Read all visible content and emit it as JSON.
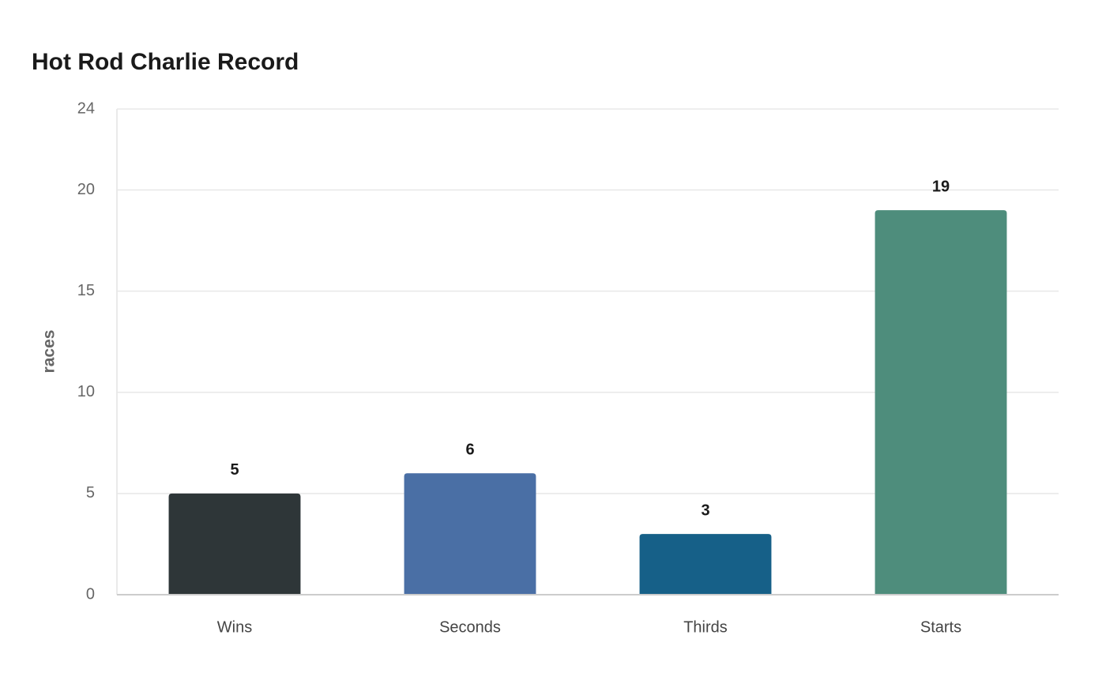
{
  "chart_data": {
    "type": "bar",
    "title": "Hot Rod Charlie Record",
    "y_label": "races",
    "categories": [
      "Wins",
      "Seconds",
      "Thirds",
      "Starts"
    ],
    "values": [
      5,
      6,
      3,
      19
    ],
    "colors": [
      "#2e3638",
      "#4a6fa5",
      "#166088",
      "#4e8d7c"
    ],
    "ylim": [
      0,
      24
    ],
    "yticks": [
      0,
      5,
      10,
      15,
      20,
      24
    ],
    "grid": true
  }
}
